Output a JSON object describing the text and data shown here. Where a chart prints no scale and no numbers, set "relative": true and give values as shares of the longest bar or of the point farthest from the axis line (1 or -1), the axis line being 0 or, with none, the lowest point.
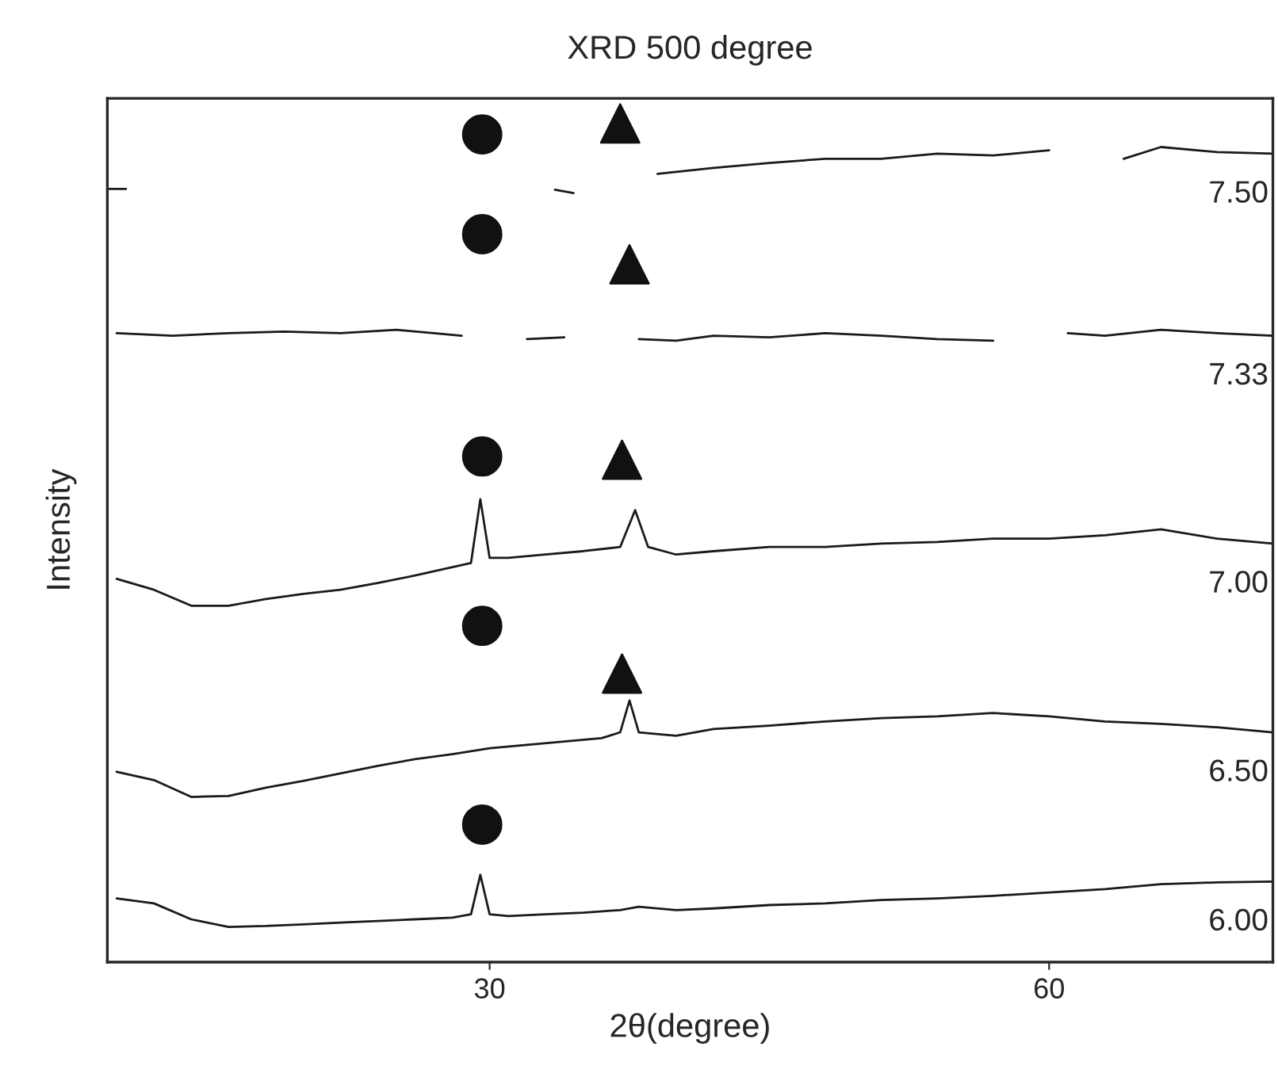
{
  "chart_data": {
    "type": "line",
    "title": "XRD 500 degree",
    "xlabel": "2θ(degree)",
    "ylabel": "Intensity",
    "relative": true,
    "xlim": [
      9.5,
      72
    ],
    "xticks": [
      30,
      60
    ],
    "grid": false,
    "legend": false,
    "tick_labels": "x",
    "series": [
      {
        "name": "6.00",
        "color": "#1a1a1a",
        "marker": "none",
        "x": [
          10,
          12,
          14,
          16,
          18,
          20,
          22,
          24,
          26,
          28,
          29,
          29.5,
          30,
          31,
          33,
          35,
          37,
          38,
          40,
          42,
          45,
          48,
          51,
          54,
          57,
          60,
          63,
          66,
          69,
          72
        ],
        "values": [
          0.076,
          0.07,
          0.051,
          0.042,
          0.043,
          0.045,
          0.047,
          0.049,
          0.051,
          0.053,
          0.057,
          0.104,
          0.057,
          0.055,
          0.057,
          0.059,
          0.062,
          0.066,
          0.062,
          0.064,
          0.068,
          0.07,
          0.074,
          0.076,
          0.079,
          0.083,
          0.087,
          0.093,
          0.095,
          0.096
        ]
      },
      {
        "name": "6.50",
        "color": "#1a1a1a",
        "marker": "none",
        "x": [
          10,
          12,
          14,
          16,
          18,
          20,
          22,
          24,
          26,
          28,
          30,
          32,
          34,
          36,
          37,
          37.5,
          38,
          40,
          42,
          45,
          48,
          51,
          54,
          57,
          60,
          63,
          66,
          69,
          72
        ],
        "values": [
          0.227,
          0.217,
          0.197,
          0.198,
          0.208,
          0.216,
          0.225,
          0.234,
          0.242,
          0.248,
          0.255,
          0.259,
          0.263,
          0.267,
          0.274,
          0.312,
          0.274,
          0.27,
          0.278,
          0.282,
          0.287,
          0.291,
          0.293,
          0.297,
          0.293,
          0.287,
          0.284,
          0.28,
          0.274
        ]
      },
      {
        "name": "7.00",
        "color": "#1a1a1a",
        "marker": "none",
        "x": [
          10,
          12,
          14,
          16,
          18,
          20,
          22,
          24,
          26,
          28,
          29,
          29.5,
          30,
          31,
          33,
          35,
          37,
          37.8,
          38.5,
          40,
          42,
          45,
          48,
          51,
          54,
          57,
          60,
          63,
          66,
          69,
          72
        ],
        "values": [
          0.457,
          0.444,
          0.425,
          0.425,
          0.433,
          0.439,
          0.444,
          0.452,
          0.461,
          0.471,
          0.476,
          0.552,
          0.482,
          0.482,
          0.486,
          0.49,
          0.495,
          0.539,
          0.495,
          0.486,
          0.49,
          0.495,
          0.495,
          0.499,
          0.501,
          0.505,
          0.505,
          0.509,
          0.516,
          0.505,
          0.499
        ]
      },
      {
        "name": "7.33",
        "color": "#1a1a1a",
        "marker": "none",
        "x": [
          10,
          13,
          16,
          19,
          22,
          25,
          27,
          28.5,
          31,
          32,
          34,
          36,
          38,
          40,
          42,
          45,
          48,
          51,
          54,
          57,
          59,
          61,
          63,
          66,
          69,
          72
        ],
        "values": [
          0.75,
          0.747,
          0.75,
          0.752,
          0.75,
          0.754,
          0.75,
          0.747,
          null,
          0.743,
          0.745,
          null,
          0.743,
          0.741,
          0.747,
          0.745,
          0.75,
          0.747,
          0.743,
          0.741,
          null,
          0.75,
          0.747,
          0.754,
          0.75,
          0.747
        ]
      },
      {
        "name": "7.50",
        "color": "#1a1a1a",
        "marker": "none",
        "x": [
          9.6,
          10.5,
          15,
          33.5,
          34.5,
          36,
          39,
          42,
          45,
          48,
          51,
          54,
          57,
          60,
          62,
          64,
          66,
          69,
          72
        ],
        "values": [
          0.922,
          0.922,
          null,
          0.921,
          0.917,
          null,
          0.94,
          0.947,
          0.953,
          0.958,
          0.958,
          0.964,
          0.962,
          0.968,
          null,
          0.958,
          0.972,
          0.966,
          0.964
        ]
      },
      {
        "type": "scatter",
        "color": "#111111",
        "marker": "circle",
        "x": [
          29.6,
          29.6,
          29.6,
          29.6,
          29.6
        ],
        "values": [
          0.164,
          0.401,
          0.603,
          0.868,
          0.987
        ]
      },
      {
        "type": "scatter",
        "color": "#111111",
        "marker": "triangle",
        "x": [
          37.1,
          37.1,
          37.5,
          37.0
        ],
        "values": [
          0.344,
          0.599,
          0.832,
          1.0
        ]
      }
    ]
  }
}
